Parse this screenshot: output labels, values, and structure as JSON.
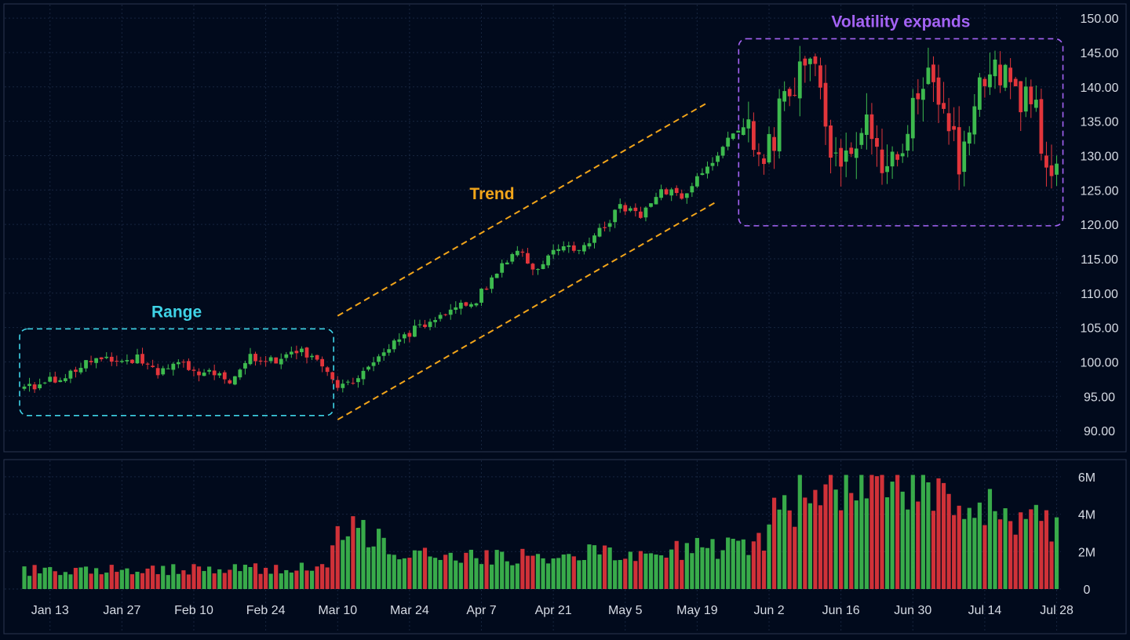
{
  "chart_data": {
    "type": "candlestick",
    "price_axis": {
      "ticks": [
        90,
        95,
        100,
        105,
        110,
        115,
        120,
        125,
        130,
        135,
        140,
        145,
        150
      ],
      "tick_labels": [
        "90.00",
        "95.00",
        "100.00",
        "105.00",
        "110.00",
        "115.00",
        "120.00",
        "125.00",
        "130.00",
        "135.00",
        "140.00",
        "145.00",
        "150.00"
      ],
      "range": [
        87.5,
        151.5
      ]
    },
    "volume_axis": {
      "ticks": [
        0,
        2000000,
        4000000,
        6000000
      ],
      "tick_labels": [
        "0",
        "2M",
        "4M",
        "6M"
      ],
      "range": [
        0,
        6500000
      ]
    },
    "x_axis": {
      "tick_labels": [
        "Jan 13",
        "Jan 27",
        "Feb 10",
        "Feb 24",
        "Mar 10",
        "Mar 24",
        "Apr 7",
        "Apr 21",
        "May 5",
        "May 19",
        "Jun 2",
        "Jun 16",
        "Jun 30",
        "Jul 14",
        "Jul 28"
      ],
      "tick_indices": [
        5,
        19,
        33,
        47,
        61,
        75,
        89,
        103,
        117,
        131,
        145,
        159,
        173,
        187,
        201
      ],
      "bar_count": 202
    },
    "grid": true,
    "colors": {
      "up": "#3dba4e",
      "down": "#e2353b",
      "background": "#010a1c",
      "grid": "#17253f",
      "axis_text": "#d6dbe4"
    },
    "annotations": [
      {
        "label": "Range",
        "color": "#3fd3e6",
        "shape": "dashed-box",
        "from_index": 0,
        "to_index": 59,
        "price_low": 92.2,
        "price_high": 104.8
      },
      {
        "label": "Trend",
        "color": "#f2a51a",
        "shape": "dashed-channel",
        "upper": {
          "from_index": 61,
          "from_price": 106.7,
          "to_index": 133,
          "to_price": 137.7
        },
        "lower": {
          "from_index": 61,
          "from_price": 91.6,
          "to_index": 135,
          "to_price": 123.4
        }
      },
      {
        "label": "Volatility expands",
        "color": "#a463f5",
        "shape": "dashed-box",
        "from_index": 140,
        "to_index": 201,
        "price_low": 119.8,
        "price_high": 147.0
      }
    ],
    "price_path": {
      "description_points": [
        [
          0,
          96.2
        ],
        [
          7,
          97.8
        ],
        [
          14,
          100.6
        ],
        [
          19,
          99.6
        ],
        [
          22,
          100.6
        ],
        [
          26,
          98.2
        ],
        [
          30,
          99.6
        ],
        [
          36,
          98.2
        ],
        [
          40,
          97.4
        ],
        [
          44,
          100.8
        ],
        [
          49,
          100.0
        ],
        [
          54,
          101.4
        ],
        [
          59,
          99.0
        ],
        [
          61,
          96.2
        ],
        [
          66,
          98.4
        ],
        [
          72,
          102.8
        ],
        [
          78,
          105.6
        ],
        [
          84,
          108.2
        ],
        [
          88,
          109.0
        ],
        [
          93,
          114.2
        ],
        [
          96,
          116.0
        ],
        [
          100,
          113.0
        ],
        [
          104,
          117.0
        ],
        [
          108,
          116.6
        ],
        [
          112,
          119.0
        ],
        [
          116,
          122.4
        ],
        [
          120,
          121.4
        ],
        [
          124,
          125.0
        ],
        [
          128,
          124.0
        ],
        [
          133,
          128.0
        ],
        [
          137,
          133.0
        ],
        [
          141,
          134.0
        ],
        [
          144,
          128.0
        ],
        [
          147,
          136.0
        ],
        [
          151,
          142.0
        ],
        [
          154,
          143.0
        ],
        [
          157,
          130.0
        ],
        [
          159,
          126.0
        ],
        [
          162,
          133.0
        ],
        [
          165,
          135.0
        ],
        [
          167,
          126.5
        ],
        [
          170,
          130.0
        ],
        [
          174,
          138.0
        ],
        [
          176,
          141.0
        ],
        [
          179,
          136.0
        ],
        [
          182,
          130.0
        ],
        [
          185,
          137.0
        ],
        [
          188,
          143.0
        ],
        [
          190,
          142.0
        ],
        [
          193,
          138.0
        ],
        [
          196,
          140.0
        ],
        [
          198,
          133.0
        ],
        [
          201,
          127.0
        ]
      ]
    },
    "volume_profile_millions": [
      [
        0,
        1.0
      ],
      [
        59,
        1.1
      ],
      [
        61,
        2.9
      ],
      [
        64,
        3.5
      ],
      [
        75,
        1.7
      ],
      [
        100,
        1.8
      ],
      [
        130,
        2.1
      ],
      [
        144,
        2.4
      ],
      [
        145,
        4.2
      ],
      [
        160,
        5.8
      ],
      [
        175,
        5.2
      ],
      [
        190,
        4.0
      ],
      [
        201,
        3.3
      ]
    ]
  }
}
